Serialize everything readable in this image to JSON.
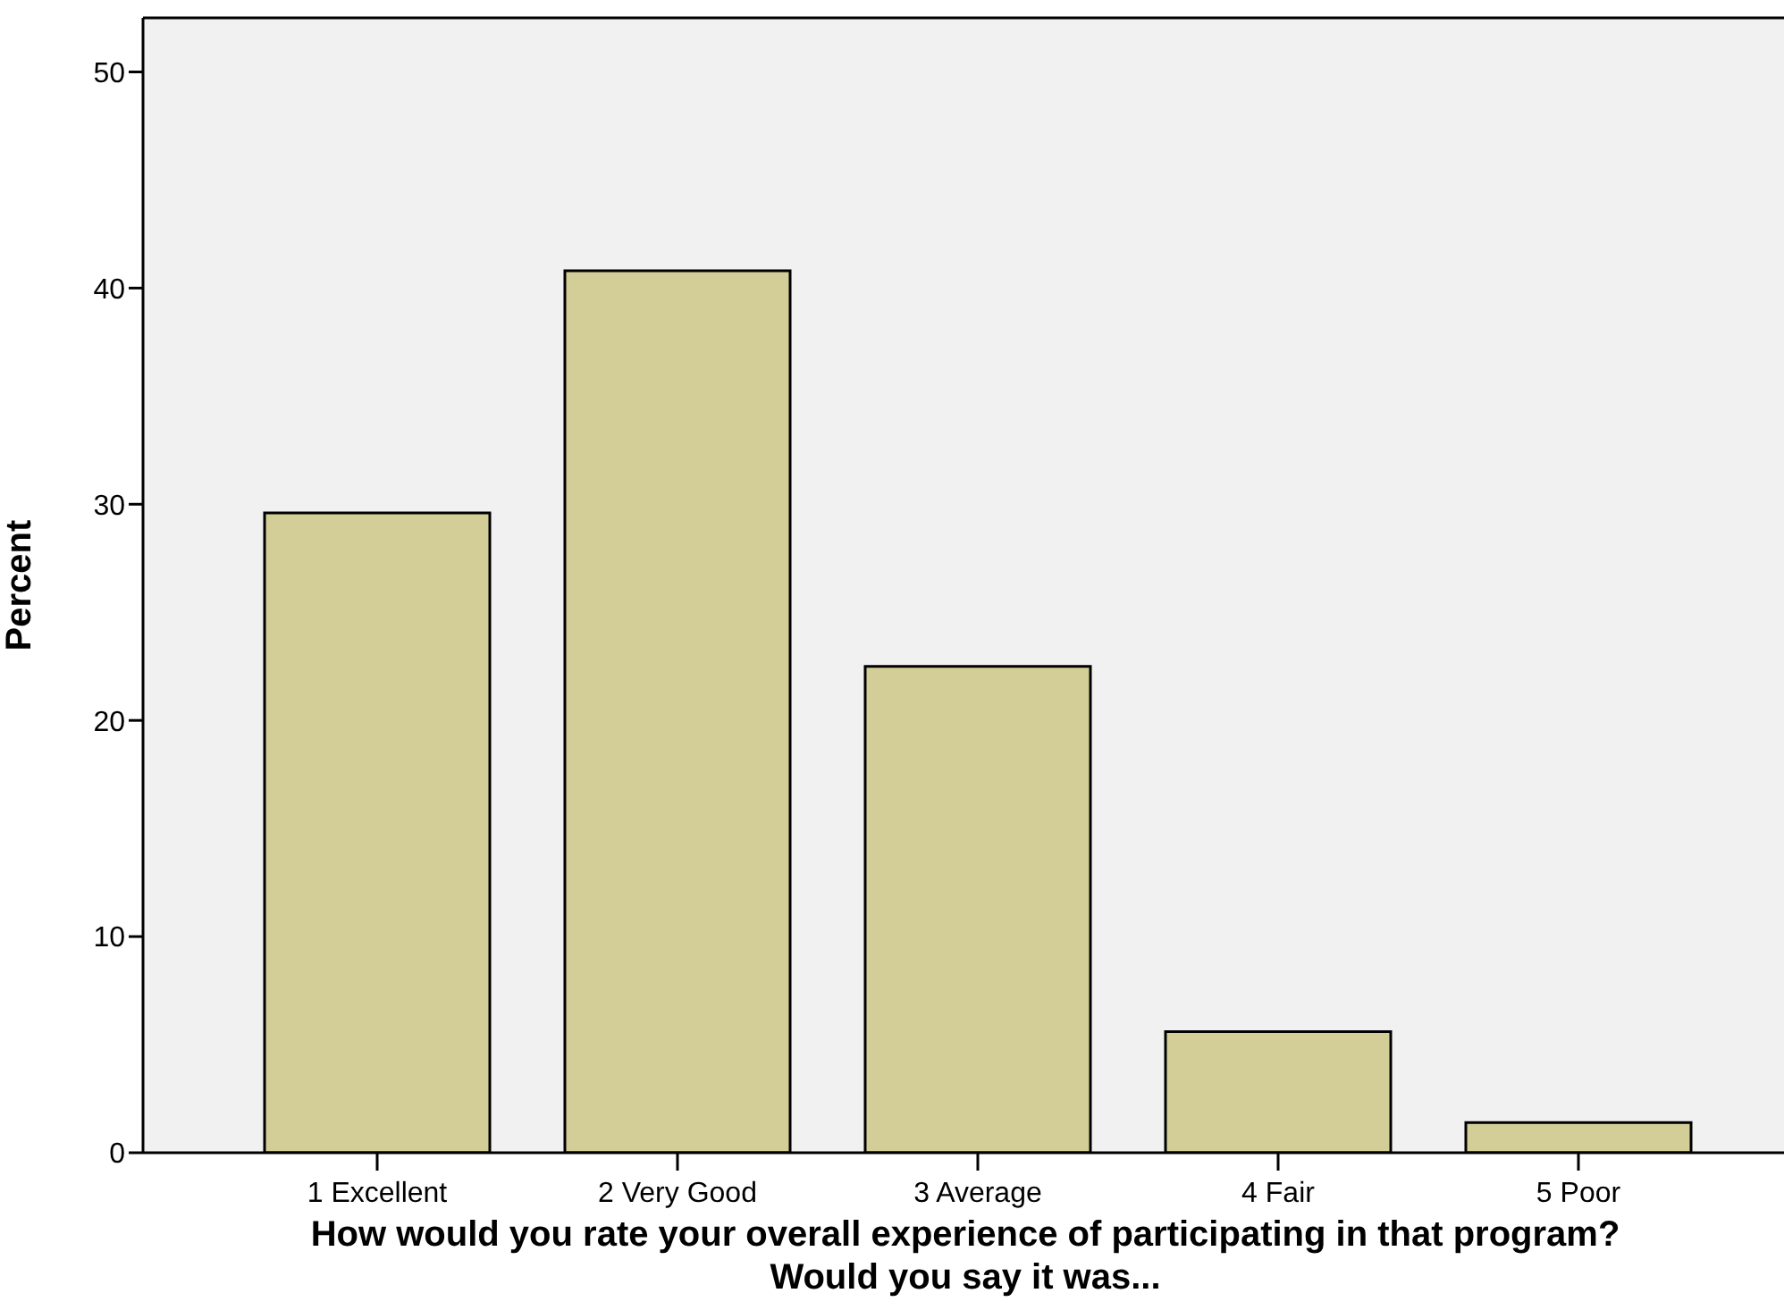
{
  "chart_data": {
    "type": "bar",
    "categories": [
      "1 Excellent",
      "2 Very Good",
      "3 Average",
      "4 Fair",
      "5 Poor"
    ],
    "values": [
      29.6,
      40.8,
      22.5,
      5.6,
      1.4
    ],
    "color": "#d3ce97",
    "ylim": [
      0,
      52.5
    ],
    "yticks": [
      0,
      10,
      20,
      30,
      40,
      50
    ],
    "ylabel": "Percent",
    "xlabel": "How would you rate your overall experience of participating in that program?\nWould you say it was...",
    "grid": false,
    "legend": false
  }
}
